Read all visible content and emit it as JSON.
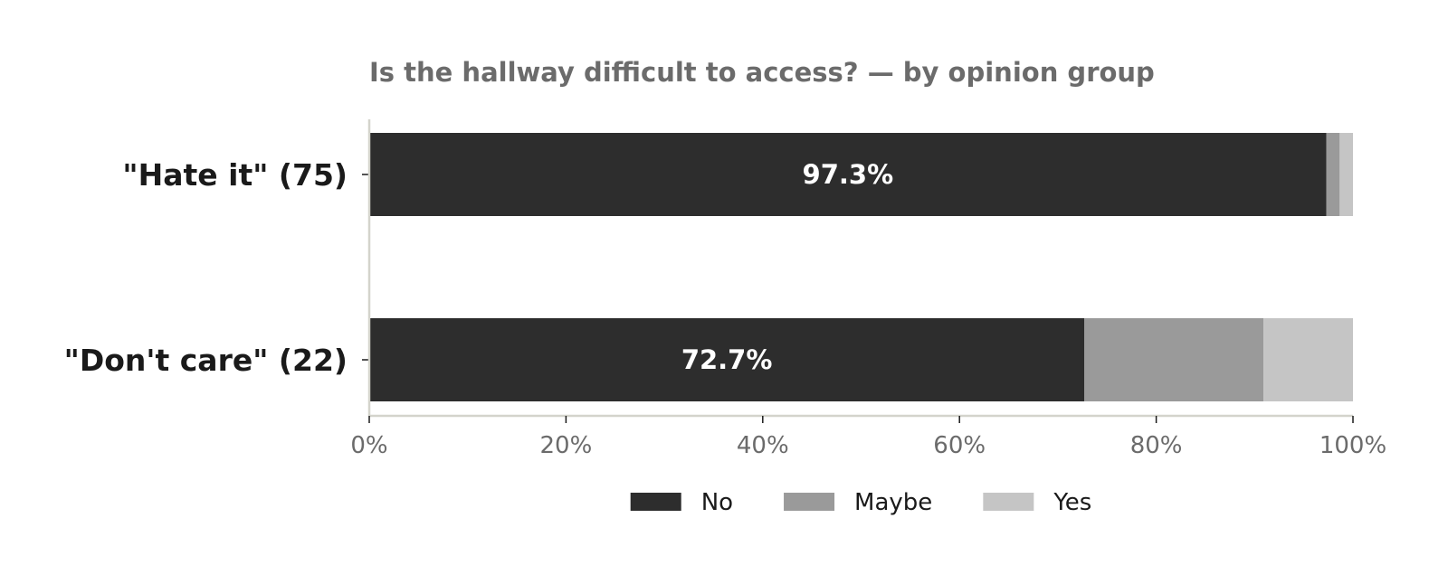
{
  "chart_data": {
    "type": "bar",
    "orientation": "horizontal",
    "stacked": true,
    "title": "Is the hallway difficult to access? — by opinion group",
    "categories": [
      "\"Hate it\" (75)",
      "\"Don't care\" (22)"
    ],
    "series": [
      {
        "name": "No",
        "color": "#2d2d2d",
        "values": [
          97.3,
          72.7
        ],
        "labels": [
          "97.3%",
          "72.7%"
        ]
      },
      {
        "name": "Maybe",
        "color": "#9a9a9a",
        "values": [
          1.35,
          18.2
        ]
      },
      {
        "name": "Yes",
        "color": "#c5c5c5",
        "values": [
          1.35,
          9.1
        ]
      }
    ],
    "xlim": [
      0,
      100
    ],
    "xticks": [
      0,
      20,
      40,
      60,
      80,
      100
    ],
    "xtick_labels": [
      "0%",
      "20%",
      "40%",
      "60%",
      "80%",
      "100%"
    ],
    "xlabel": "",
    "ylabel": "",
    "grid": false,
    "legend_position": "bottom-center"
  }
}
